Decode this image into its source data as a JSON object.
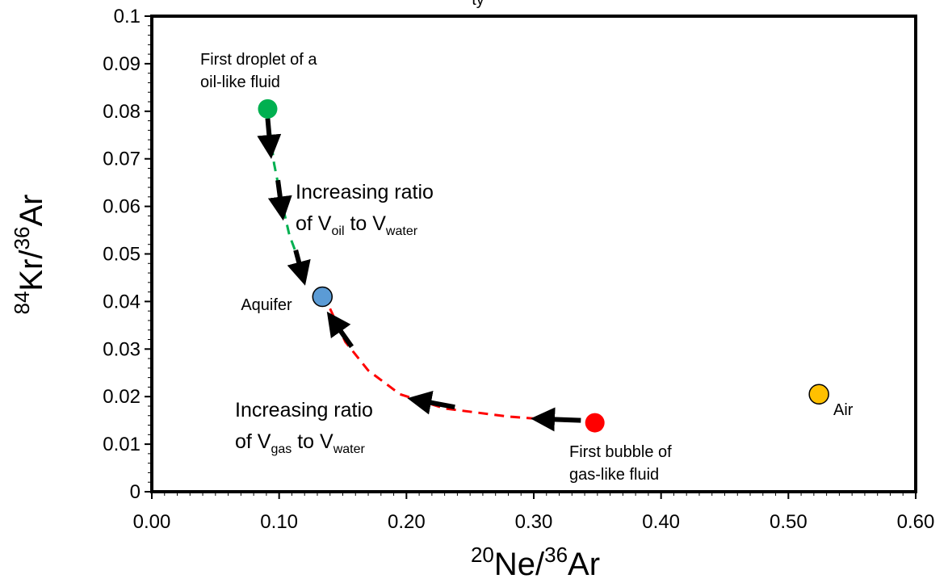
{
  "chart_data": {
    "type": "scatter",
    "xlim": [
      0,
      0.6
    ],
    "ylim": [
      0,
      0.1
    ],
    "x_tick_labels": [
      "0.00",
      "0.10",
      "0.20",
      "0.30",
      "0.40",
      "0.50",
      "0.60"
    ],
    "y_tick_labels": [
      "0",
      "0.01",
      "0.02",
      "0.03",
      "0.04",
      "0.05",
      "0.06",
      "0.07",
      "0.08",
      "0.09",
      "0.1"
    ],
    "xlabel": {
      "pre_sup": "20",
      "main": "Ne/",
      "sup": "36",
      "post": "Ar"
    },
    "ylabel": {
      "pre_sup": "84",
      "main": "Kr/",
      "sup": "36",
      "post": "Ar"
    },
    "title_fragment": "ty",
    "grid": false,
    "points": [
      {
        "name": "Aquifer",
        "x": 0.134,
        "y": 0.041,
        "color": "#5b9bd5"
      },
      {
        "name": "Air",
        "x": 0.524,
        "y": 0.0205,
        "color": "#ffc000"
      },
      {
        "name": "First droplet",
        "x": 0.091,
        "y": 0.0805,
        "color": "#00b050"
      },
      {
        "name": "First bubble",
        "x": 0.348,
        "y": 0.0145,
        "color": "#ff0000"
      }
    ],
    "series": [
      {
        "color": "#00b050",
        "style": "dashed",
        "x": [
          0.091,
          0.096,
          0.102,
          0.108,
          0.115,
          0.121
        ],
        "y": [
          0.0795,
          0.069,
          0.061,
          0.054,
          0.049,
          0.045
        ]
      },
      {
        "color": "#ff0000",
        "style": "dashed",
        "x": [
          0.14,
          0.152,
          0.17,
          0.195,
          0.23,
          0.28,
          0.33
        ],
        "y": [
          0.0385,
          0.0315,
          0.0255,
          0.0205,
          0.0175,
          0.0158,
          0.0148
        ]
      }
    ],
    "arrows": [
      {
        "x1": 0.091,
        "y1": 0.0785,
        "x2": 0.093,
        "y2": 0.0725
      },
      {
        "x1": 0.099,
        "y1": 0.0655,
        "x2": 0.102,
        "y2": 0.0595
      },
      {
        "x1": 0.113,
        "y1": 0.0508,
        "x2": 0.118,
        "y2": 0.0458
      },
      {
        "x1": 0.337,
        "y1": 0.015,
        "x2": 0.307,
        "y2": 0.0153
      },
      {
        "x1": 0.238,
        "y1": 0.0178,
        "x2": 0.21,
        "y2": 0.0192
      },
      {
        "x1": 0.157,
        "y1": 0.0305,
        "x2": 0.143,
        "y2": 0.0358
      }
    ],
    "labels": {
      "aquifer": "Aquifer",
      "air": "Air",
      "droplet_1": "First droplet of a",
      "droplet_2": "oil-like fluid",
      "bubble_1": "First bubble of",
      "bubble_2": "gas-like fluid",
      "oil_line1": "Increasing ratio",
      "oil_of": "of V",
      "oil_sub": "oil",
      "oil_to": " to V",
      "oil_sub2": "water",
      "gas_line1": "Increasing ratio",
      "gas_of": "of V",
      "gas_sub": "gas",
      "gas_to": " to V",
      "gas_sub2": "water"
    },
    "colors": {
      "frame": "#000000",
      "arrow": "#000000",
      "marker_edge": "#000000"
    }
  }
}
